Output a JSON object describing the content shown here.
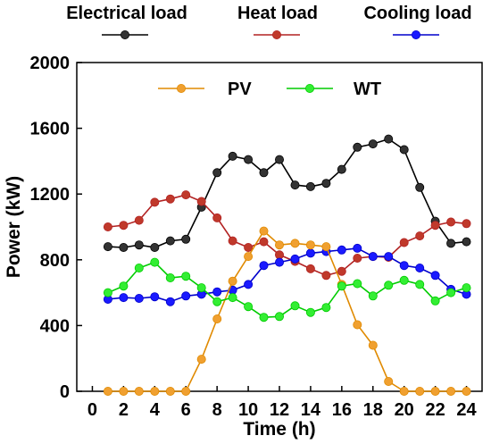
{
  "chart_data": {
    "type": "line",
    "title": "",
    "xlabel": "Time (h)",
    "ylabel": "Power (kW)",
    "xlim": [
      -1,
      25
    ],
    "ylim": [
      0,
      2000
    ],
    "xticks": [
      0,
      2,
      4,
      6,
      8,
      10,
      12,
      14,
      16,
      18,
      20,
      22,
      24
    ],
    "yticks": [
      0,
      400,
      800,
      1200,
      1600,
      2000
    ],
    "x": [
      1,
      2,
      3,
      4,
      5,
      6,
      7,
      8,
      9,
      10,
      11,
      12,
      13,
      14,
      15,
      16,
      17,
      18,
      19,
      20,
      21,
      22,
      23,
      24
    ],
    "legend_top": "above plot",
    "legend_inner": "top center",
    "series": [
      {
        "name": "Electrical load",
        "color": "#000000",
        "marker": "#333333",
        "values": [
          880,
          875,
          890,
          875,
          915,
          925,
          1120,
          1330,
          1430,
          1410,
          1330,
          1410,
          1255,
          1245,
          1265,
          1350,
          1485,
          1505,
          1535,
          1470,
          1240,
          1035,
          900,
          910
        ]
      },
      {
        "name": "Heat load",
        "color": "#b22222",
        "marker": "#c0392b",
        "values": [
          1000,
          1010,
          1040,
          1150,
          1170,
          1195,
          1155,
          1055,
          915,
          875,
          910,
          830,
          790,
          745,
          705,
          730,
          810,
          820,
          815,
          905,
          945,
          1010,
          1030,
          1020
        ]
      },
      {
        "name": "Cooling load",
        "color": "#0000cc",
        "marker": "#1a1aff",
        "values": [
          560,
          570,
          565,
          575,
          545,
          580,
          590,
          605,
          615,
          650,
          765,
          785,
          805,
          840,
          850,
          860,
          870,
          820,
          820,
          765,
          750,
          705,
          620,
          590
        ]
      },
      {
        "name": "PV",
        "color": "#e08a00",
        "marker": "#f0a030",
        "values": [
          0,
          0,
          0,
          0,
          0,
          0,
          195,
          440,
          670,
          820,
          975,
          890,
          900,
          890,
          880,
          650,
          405,
          280,
          60,
          0,
          0,
          0,
          0,
          0
        ]
      },
      {
        "name": "WT",
        "color": "#00cc00",
        "marker": "#33ee33",
        "values": [
          600,
          640,
          750,
          785,
          690,
          700,
          630,
          545,
          570,
          515,
          450,
          455,
          520,
          480,
          510,
          640,
          655,
          580,
          645,
          675,
          650,
          550,
          600,
          630
        ]
      }
    ]
  }
}
